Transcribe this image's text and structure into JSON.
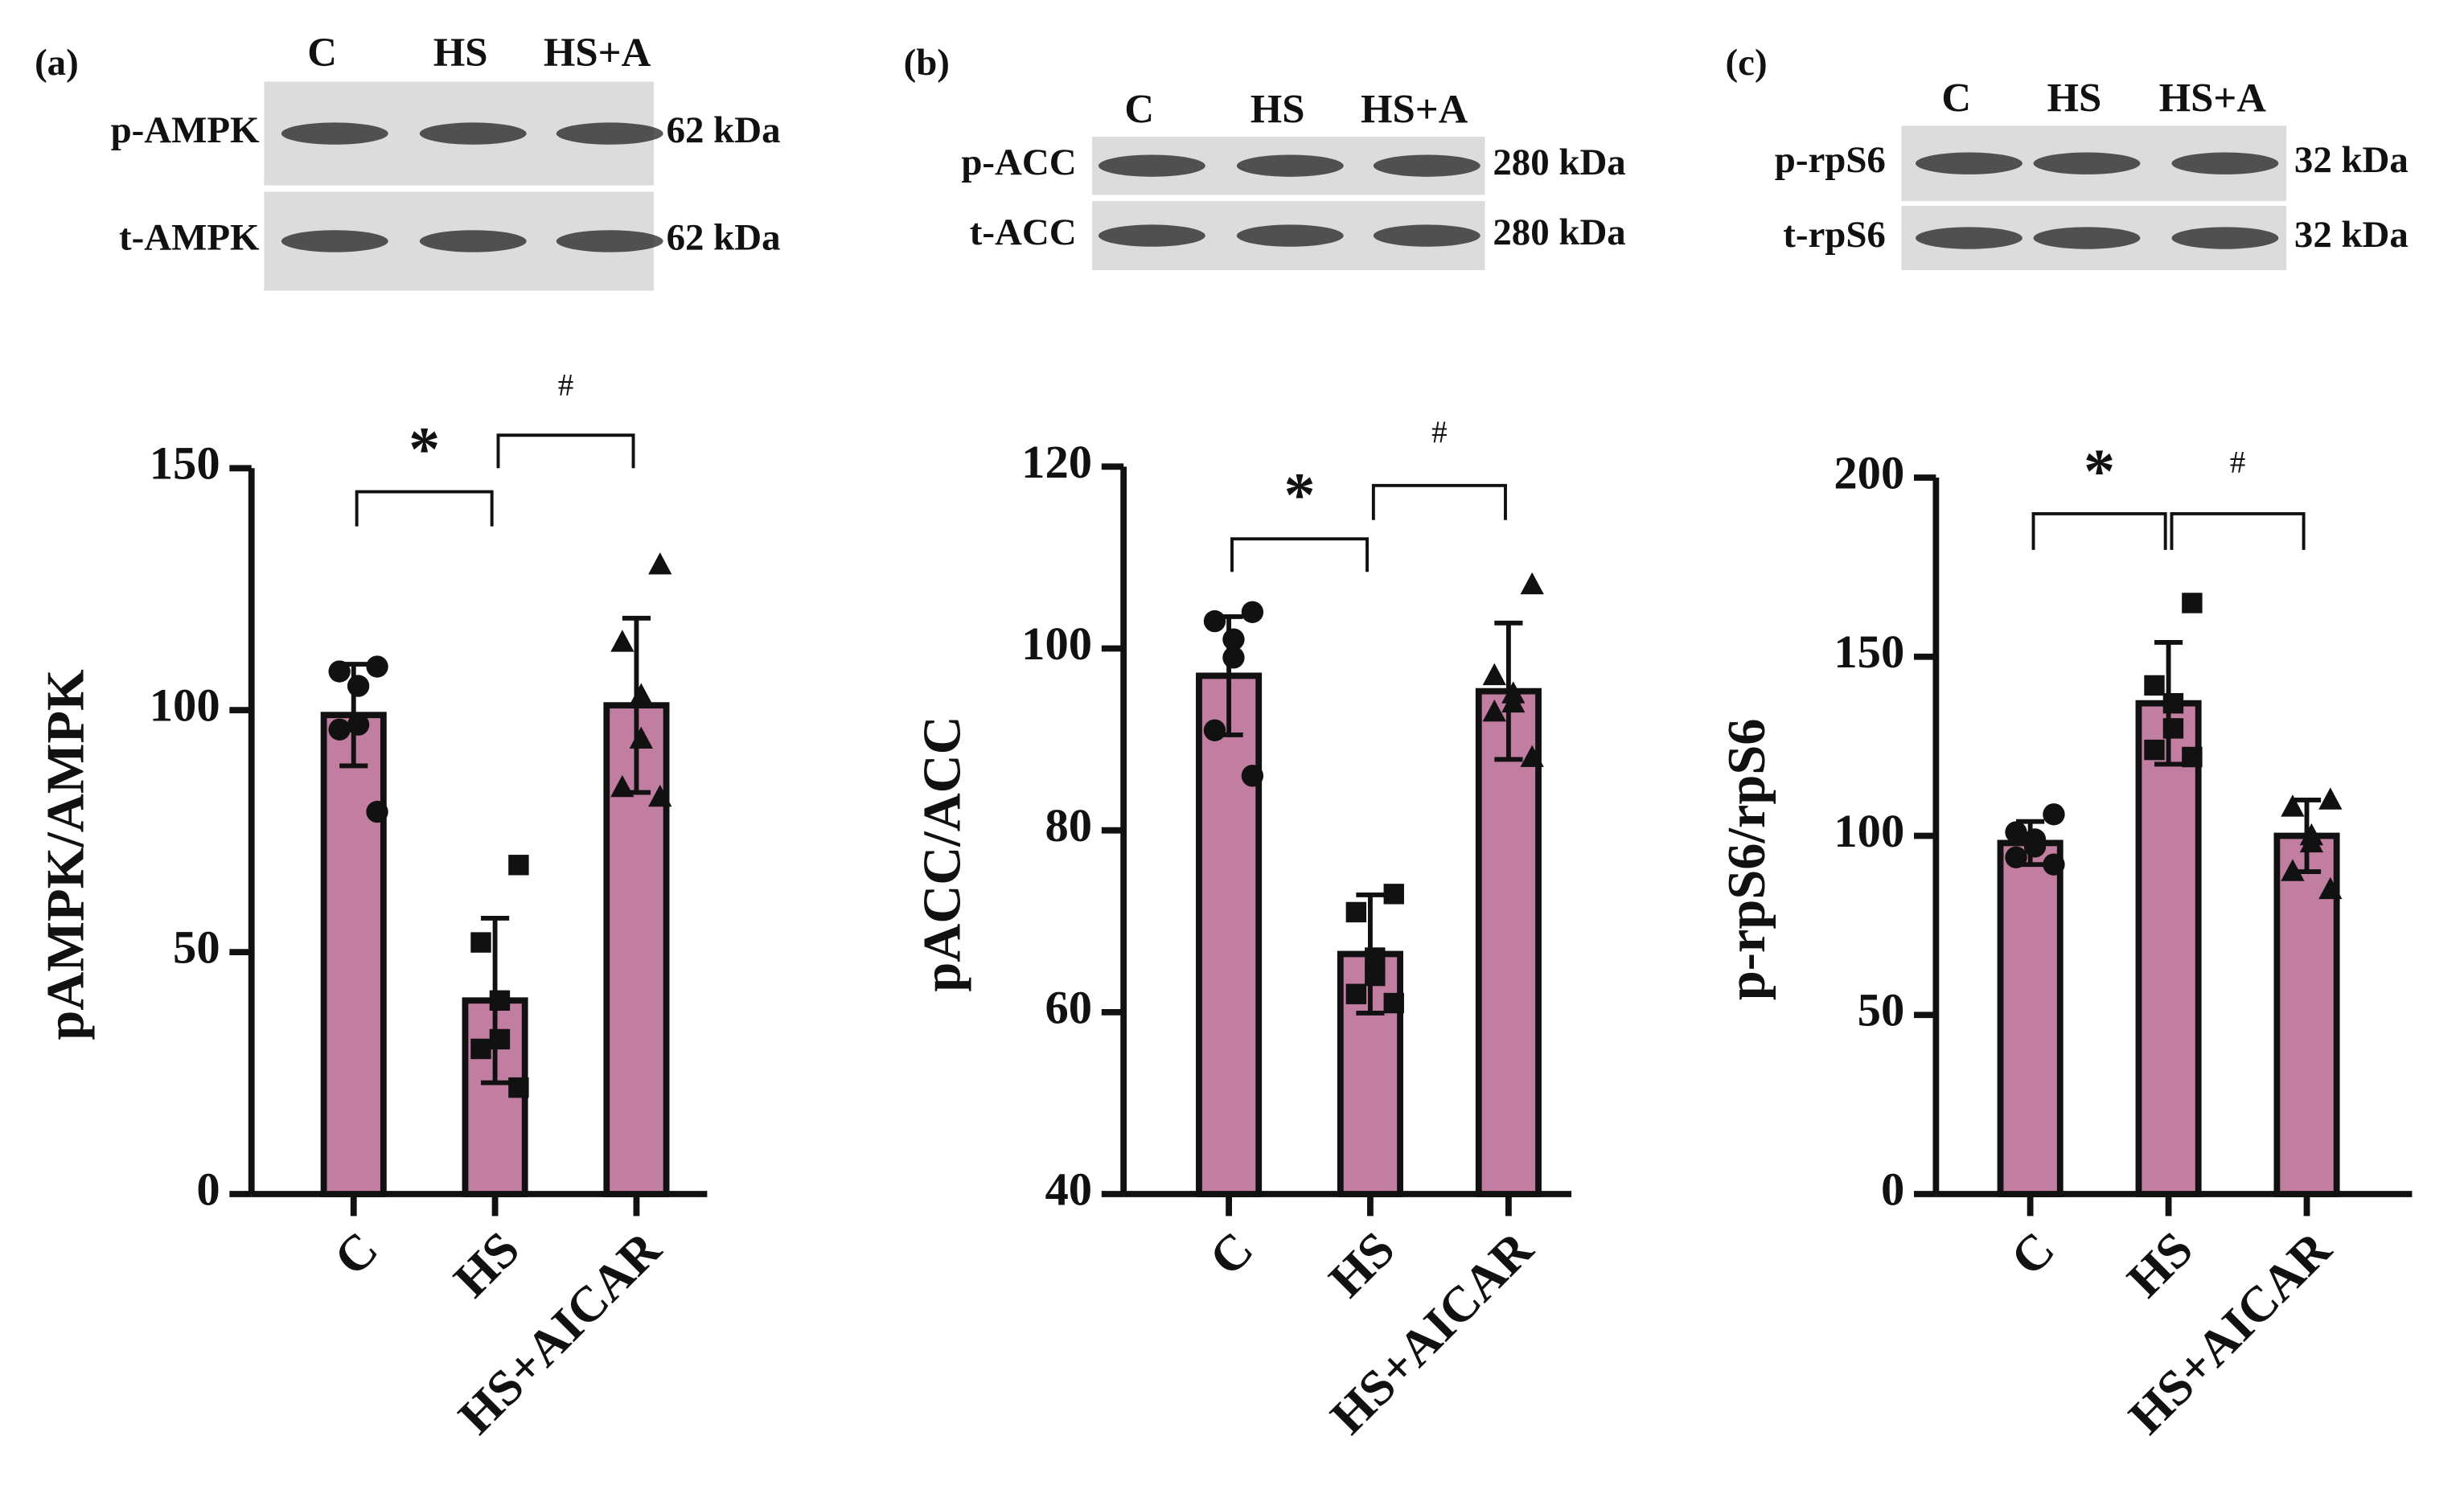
{
  "chart_data": [
    {
      "type": "bar",
      "panel_label": "(a)",
      "lanes": [
        "C",
        "HS",
        "HS+A"
      ],
      "blot_rows": [
        {
          "label": "p-AMPK",
          "kda": "62 kDa"
        },
        {
          "label": "t-AMPK",
          "kda": "62 kDa"
        }
      ],
      "ylabel": "pAMPK/AMPK",
      "categories": [
        "C",
        "HS",
        "HS+AICAR"
      ],
      "values": [
        99,
        40,
        101
      ],
      "errors": [
        10.5,
        17,
        18
      ],
      "points": [
        [
          109,
          108,
          105,
          97,
          96,
          79
        ],
        [
          68,
          52,
          40,
          32,
          30,
          22
        ],
        [
          130,
          114,
          103,
          94,
          84,
          82
        ]
      ],
      "markers": [
        "circle",
        "square",
        "triangle"
      ],
      "color": "#c27ea0",
      "ylim": [
        0,
        150
      ],
      "yticks": [
        0,
        50,
        100,
        150
      ],
      "annotations": [
        {
          "text": "*",
          "from": 0,
          "to": 1
        },
        {
          "text": "#",
          "from": 1,
          "to": 2
        }
      ]
    },
    {
      "type": "bar",
      "panel_label": "(b)",
      "lanes": [
        "C",
        "HS",
        "HS+A"
      ],
      "blot_rows": [
        {
          "label": "p-ACC",
          "kda": "280 kDa"
        },
        {
          "label": "t-ACC",
          "kda": "280 kDa"
        }
      ],
      "ylabel": "pACC/ACC",
      "categories": [
        "C",
        "HS",
        "HS+AICAR"
      ],
      "values": [
        97,
        66.4,
        95.3
      ],
      "errors": [
        6.5,
        6.5,
        7.5
      ],
      "points": [
        [
          104,
          103,
          101,
          99,
          91,
          86
        ],
        [
          73,
          71,
          66,
          64,
          62,
          61
        ],
        [
          107,
          97,
          95,
          94,
          93,
          88
        ]
      ],
      "markers": [
        "circle",
        "square",
        "triangle"
      ],
      "color": "#c27ea0",
      "ylim": [
        40,
        120
      ],
      "yticks": [
        40,
        60,
        80,
        100,
        120
      ],
      "annotations": [
        {
          "text": "*",
          "from": 0,
          "to": 1
        },
        {
          "text": "#",
          "from": 1,
          "to": 2
        }
      ]
    },
    {
      "type": "bar",
      "panel_label": "(c)",
      "lanes": [
        "C",
        "HS",
        "HS+A"
      ],
      "blot_rows": [
        {
          "label": "p-rpS6",
          "kda": "32 kDa"
        },
        {
          "label": "t-rpS6",
          "kda": "32 kDa"
        }
      ],
      "ylabel": "p-rpS6/rpS6",
      "categories": [
        "C",
        "HS",
        "HS+AICAR"
      ],
      "values": [
        98,
        137,
        100
      ],
      "errors": [
        6,
        17,
        10
      ],
      "points": [
        [
          106,
          101,
          99,
          97,
          94,
          92
        ],
        [
          165,
          142,
          137,
          130,
          124,
          122
        ],
        [
          110,
          108,
          100,
          98,
          90,
          85
        ]
      ],
      "markers": [
        "circle",
        "square",
        "triangle"
      ],
      "color": "#c27ea0",
      "ylim": [
        0,
        200
      ],
      "yticks": [
        0,
        50,
        100,
        150,
        200
      ],
      "annotations": [
        {
          "text": "*",
          "from": 0,
          "to": 1
        },
        {
          "text": "#",
          "from": 1,
          "to": 2
        }
      ]
    }
  ]
}
